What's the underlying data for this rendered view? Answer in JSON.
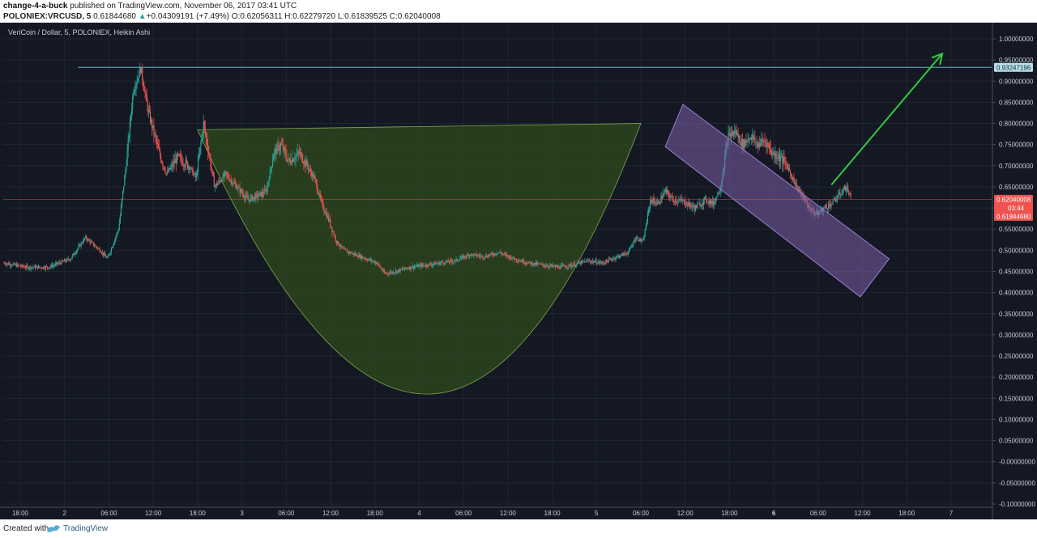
{
  "header": {
    "author": "change-4-a-buck",
    "published_text": "published on TradingView.com, November 06, 2017 03:41 UTC",
    "symbol": "POLONIEX:VRCUSD, 5",
    "last": "0.61844680",
    "change": "+0.04309191 (+7.49%)",
    "open_label": "O:",
    "open": "0.62056311",
    "high_label": "H:",
    "high": "0.62279720",
    "low_label": "L:",
    "low": "0.61839525",
    "close_label": "C:",
    "close": "0.62040008"
  },
  "footer": {
    "created_with": "Created with",
    "brand": "TradingView"
  },
  "chart_data": {
    "type": "candlestick",
    "title": "VeriCoin / Dollar, 5, POLONIEX, Heikin Ashi",
    "ylim": [
      -0.105,
      1.03
    ],
    "y_ticks": [
      "1.00000000",
      "0.95000000",
      "0.90000000",
      "0.85000000",
      "0.80000000",
      "0.75000000",
      "0.70000000",
      "0.65000000",
      "0.60000000",
      "0.55000000",
      "0.50000000",
      "0.45000000",
      "0.40000000",
      "0.35000000",
      "0.30000000",
      "0.25000000",
      "0.20000000",
      "0.15000000",
      "0.10000000",
      "0.05000000",
      "-0.00000000",
      "-0.05000000",
      "-0.10000000"
    ],
    "x_ticks": [
      "18:00",
      "2",
      "06:00",
      "12:00",
      "18:00",
      "3",
      "06:00",
      "12:00",
      "18:00",
      "4",
      "06:00",
      "12:00",
      "18:00",
      "5",
      "06:00",
      "12:00",
      "18:00",
      "6",
      "06:00",
      "12:00",
      "18:00",
      "7"
    ],
    "x_ticks_bold": [
      "6"
    ],
    "price_labels": {
      "horizontal_line": "0.93247196",
      "close": "0.62040008",
      "countdown": "03:44",
      "last": "0.61844680"
    },
    "annotations": [
      "cup",
      "descending channel",
      "up arrow"
    ],
    "colors": {
      "up": "#26a69a",
      "down": "#ef5350",
      "background": "#141823",
      "cup_fill": "#2d4a1e",
      "channel_fill": "#7b5ea7",
      "arrow": "#2ecc40",
      "hline": "#5fb6c8"
    },
    "anchors": [
      [
        0,
        0.47
      ],
      [
        3,
        0.46
      ],
      [
        6,
        0.46
      ],
      [
        9,
        0.48
      ],
      [
        11,
        0.53
      ],
      [
        13,
        0.5
      ],
      [
        14,
        0.48
      ],
      [
        15.5,
        0.55
      ],
      [
        16.5,
        0.7
      ],
      [
        17.5,
        0.88
      ],
      [
        18.5,
        0.93
      ],
      [
        19.5,
        0.83
      ],
      [
        21,
        0.73
      ],
      [
        22,
        0.68
      ],
      [
        23.5,
        0.72
      ],
      [
        25,
        0.7
      ],
      [
        26,
        0.67
      ],
      [
        27,
        0.8
      ],
      [
        28.5,
        0.65
      ],
      [
        30,
        0.68
      ],
      [
        31.5,
        0.65
      ],
      [
        33,
        0.62
      ],
      [
        34.5,
        0.63
      ],
      [
        35.5,
        0.64
      ],
      [
        36.5,
        0.73
      ],
      [
        37.5,
        0.75
      ],
      [
        38.5,
        0.71
      ],
      [
        40,
        0.73
      ],
      [
        41,
        0.7
      ],
      [
        42,
        0.67
      ],
      [
        43,
        0.61
      ],
      [
        44,
        0.57
      ],
      [
        45,
        0.52
      ],
      [
        46,
        0.5
      ],
      [
        47.5,
        0.49
      ],
      [
        49,
        0.48
      ],
      [
        50.5,
        0.47
      ],
      [
        51.5,
        0.445
      ],
      [
        53,
        0.45
      ],
      [
        55,
        0.46
      ],
      [
        57,
        0.465
      ],
      [
        59,
        0.47
      ],
      [
        61,
        0.475
      ],
      [
        63,
        0.49
      ],
      [
        65,
        0.485
      ],
      [
        67,
        0.495
      ],
      [
        69,
        0.48
      ],
      [
        71,
        0.47
      ],
      [
        73,
        0.465
      ],
      [
        75,
        0.46
      ],
      [
        77,
        0.465
      ],
      [
        79,
        0.475
      ],
      [
        81,
        0.47
      ],
      [
        83,
        0.485
      ],
      [
        84.5,
        0.495
      ],
      [
        85.5,
        0.53
      ],
      [
        86.5,
        0.52
      ],
      [
        87.5,
        0.62
      ],
      [
        88.5,
        0.61
      ],
      [
        89.5,
        0.64
      ],
      [
        90.5,
        0.62
      ],
      [
        92,
        0.615
      ],
      [
        93.5,
        0.6
      ],
      [
        95,
        0.62
      ],
      [
        96,
        0.61
      ],
      [
        97,
        0.65
      ],
      [
        98,
        0.77
      ],
      [
        99,
        0.78
      ],
      [
        100,
        0.75
      ],
      [
        101,
        0.77
      ],
      [
        102,
        0.75
      ],
      [
        103,
        0.76
      ],
      [
        104,
        0.73
      ],
      [
        105,
        0.72
      ],
      [
        106,
        0.7
      ],
      [
        107,
        0.66
      ],
      [
        108,
        0.63
      ],
      [
        109,
        0.6
      ],
      [
        110,
        0.585
      ],
      [
        111,
        0.6
      ],
      [
        112,
        0.61
      ],
      [
        113,
        0.63
      ],
      [
        114,
        0.65
      ],
      [
        114.7,
        0.62
      ]
    ]
  }
}
